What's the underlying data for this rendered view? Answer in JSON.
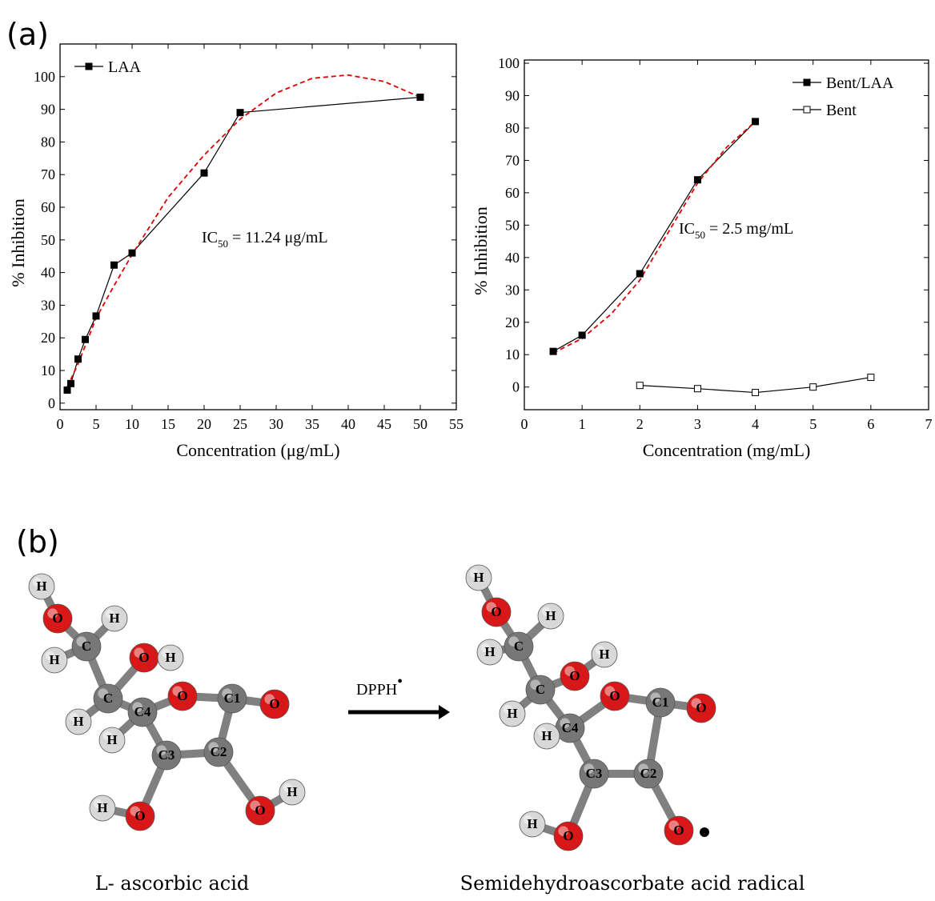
{
  "panel_labels": [
    "(a)",
    "(b)"
  ],
  "chart_data": [
    {
      "type": "line",
      "xlabel": "Concentration (μg/mL)",
      "ylabel": "% Inhibition",
      "xlim": [
        0,
        55
      ],
      "xticks": [
        0,
        5,
        10,
        15,
        20,
        25,
        30,
        35,
        40,
        45,
        50,
        55
      ],
      "ylim": [
        -2,
        110
      ],
      "yticks": [
        0,
        10,
        20,
        30,
        40,
        50,
        60,
        70,
        80,
        90,
        100
      ],
      "legend": "upper left",
      "series": [
        {
          "name": "LAA",
          "color": "#000000",
          "marker_fill": "#000000",
          "x": [
            1,
            1.5,
            2.5,
            3.5,
            5,
            7.5,
            10,
            20,
            25,
            50
          ],
          "values": [
            4,
            6,
            13.5,
            19.5,
            26.7,
            42.3,
            46,
            70.5,
            89,
            93.7
          ]
        }
      ],
      "fit": {
        "color": "#e00000",
        "x": [
          1,
          2.5,
          5,
          7.5,
          10,
          15,
          20,
          25,
          30,
          35,
          40,
          45,
          50
        ],
        "values": [
          5,
          12,
          26,
          36,
          45.5,
          63,
          76,
          87,
          95,
          99.5,
          100.5,
          98.5,
          93.7
        ]
      },
      "annotation": {
        "prefix": "IC",
        "subscript": "50",
        "suffix": " = 11.24 μg/mL"
      }
    },
    {
      "type": "line",
      "xlabel": "Concentration (mg/mL)",
      "ylabel": "% Inhibition",
      "xlim": [
        0,
        7
      ],
      "xticks": [
        0,
        1,
        2,
        3,
        4,
        5,
        6,
        7
      ],
      "ylim": [
        -7,
        101
      ],
      "yticks": [
        0,
        10,
        20,
        30,
        40,
        50,
        60,
        70,
        80,
        90,
        100
      ],
      "legend": "upper right",
      "series": [
        {
          "name": "Bent/LAA",
          "color": "#000000",
          "marker_fill": "#000000",
          "x": [
            0.5,
            1,
            2,
            3,
            4
          ],
          "values": [
            11,
            16,
            35,
            64,
            82
          ]
        },
        {
          "name": "Bent",
          "color": "#000000",
          "marker_fill": "#ffffff",
          "x": [
            2,
            3,
            4,
            5,
            6
          ],
          "values": [
            0.5,
            -0.5,
            -1.7,
            0,
            3
          ]
        }
      ],
      "fit": {
        "color": "#e00000",
        "x": [
          0.5,
          1,
          1.5,
          2,
          2.5,
          3,
          3.5,
          4
        ],
        "values": [
          10.5,
          15,
          22.5,
          33,
          48,
          63,
          74,
          82
        ]
      },
      "annotation": {
        "prefix": "IC",
        "subscript": "50",
        "suffix": " = 2.5 mg/mL"
      }
    }
  ],
  "diagram": {
    "reaction": {
      "reagent": "DPPH",
      "superscript": "•"
    },
    "molecules": [
      {
        "name": "L- ascorbic acid",
        "atoms": [
          "H",
          "O",
          "H",
          "C",
          "H",
          "O",
          "H",
          "C",
          "O",
          "C1",
          "O",
          "H",
          "C4",
          "H",
          "C3",
          "C2",
          "H",
          "O",
          "O",
          "H"
        ]
      },
      {
        "name": "Semidehydroascorbate acid radical",
        "atoms": [
          "H",
          "O",
          "H",
          "C",
          "H",
          "O",
          "H",
          "C",
          "O",
          "C1",
          "O",
          "H",
          "C4",
          "H",
          "C3",
          "C2",
          "H",
          "O",
          "O"
        ]
      }
    ]
  }
}
